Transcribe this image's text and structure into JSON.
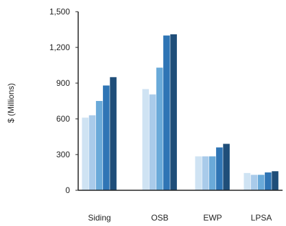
{
  "chart_data": {
    "type": "bar",
    "title": "",
    "xlabel": "",
    "ylabel": "$ (Millions)",
    "ylim": [
      0,
      1500
    ],
    "yticks": [
      0,
      300,
      600,
      900,
      1200,
      1500
    ],
    "ytick_labels": [
      "0",
      "300",
      "600",
      "900",
      "1,200",
      "1,500"
    ],
    "grid": false,
    "legend": "none",
    "categories": [
      "Siding",
      "OSB",
      "EWP",
      "LPSA"
    ],
    "series_colors": [
      "#cfe3f3",
      "#a9cbea",
      "#6aaad9",
      "#2f75b5",
      "#1f4e79",
      "#17375e"
    ],
    "series": [
      {
        "values": [
          610,
          850,
          285,
          145
        ]
      },
      {
        "values": [
          630,
          805,
          285,
          130
        ]
      },
      {
        "values": [
          750,
          1030,
          285,
          130
        ]
      },
      {
        "values": [
          880,
          1300,
          360,
          150
        ]
      },
      {
        "values": [
          950,
          1310,
          390,
          160
        ]
      }
    ]
  }
}
